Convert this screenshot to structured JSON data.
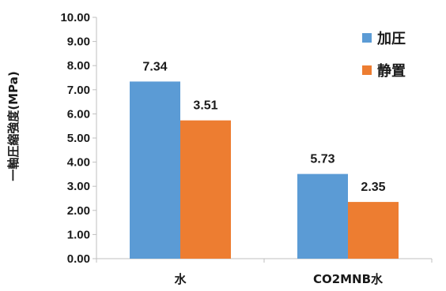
{
  "chart_data": {
    "type": "bar",
    "categories": [
      "水",
      "CO2MNB水"
    ],
    "series": [
      {
        "name": "加圧",
        "values": [
          7.34,
          3.51
        ],
        "color": "#5b9bd5"
      },
      {
        "name": "静置",
        "values": [
          5.73,
          2.35
        ],
        "color": "#ed7d31"
      }
    ],
    "data_labels": [
      [
        "7.34",
        "3.51"
      ],
      [
        "5.73",
        "2.35"
      ]
    ],
    "ylabel": "一軸圧縮強度(MPa)",
    "xlabel": "",
    "ylim": [
      0,
      10
    ],
    "yticks": [
      "0.00",
      "1.00",
      "2.00",
      "3.00",
      "4.00",
      "5.00",
      "6.00",
      "7.00",
      "8.00",
      "9.00",
      "10.00"
    ],
    "grid": false,
    "legend_position": "top-right"
  }
}
